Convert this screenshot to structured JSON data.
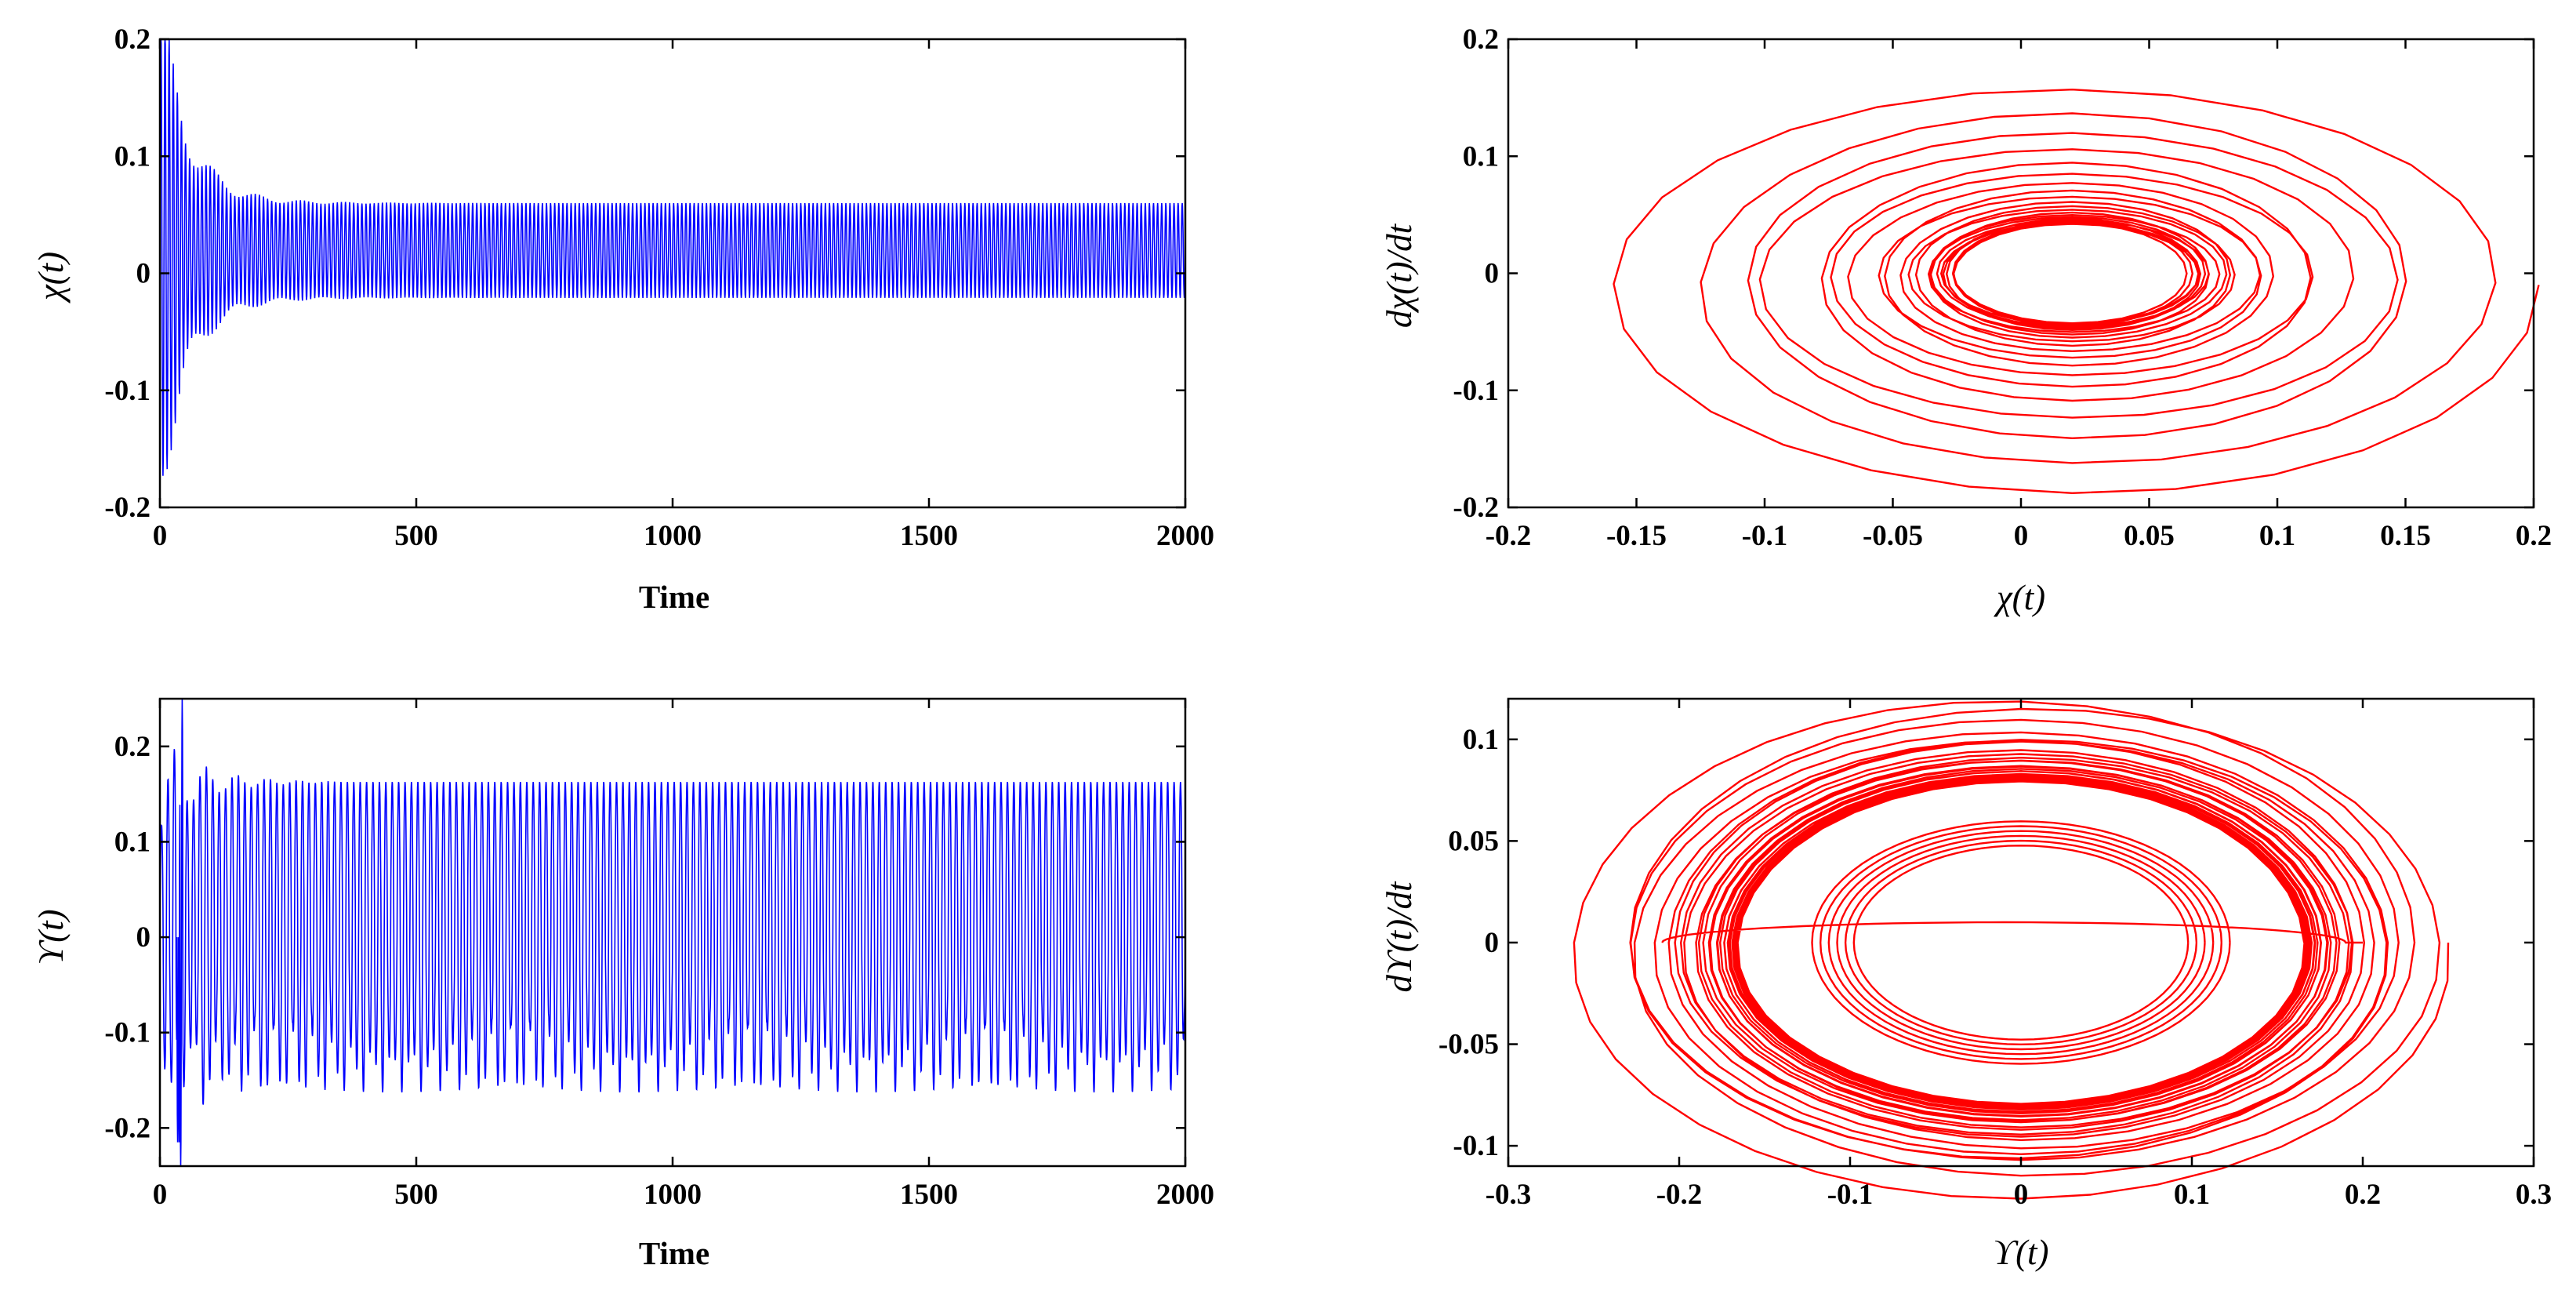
{
  "chart_data": [
    {
      "id": "p1",
      "type": "line",
      "title": "",
      "xlabel": "Time",
      "ylabel": "χ(t)",
      "xlim": [
        0,
        2000
      ],
      "ylim": [
        -0.2,
        0.2
      ],
      "xticks": [
        0,
        500,
        1000,
        1500,
        2000
      ],
      "xtick_labels": [
        "0",
        "500",
        "1000",
        "1500",
        "2000"
      ],
      "yticks": [
        -0.2,
        -0.1,
        0,
        0.1,
        0.2
      ],
      "ytick_labels": [
        "-0.2",
        "-0.1",
        "0",
        "0.1",
        "0.2"
      ],
      "color": "#0000ff",
      "series": [
        {
          "name": "χ(t)",
          "description": "oscillation decaying to steady band",
          "initial_max": 0.195,
          "initial_min": -0.17,
          "steady_max": 0.06,
          "steady_min": -0.021,
          "settle_time": 300,
          "period": 8
        }
      ]
    },
    {
      "id": "p2",
      "type": "line",
      "title": "",
      "xlabel": "χ(t)",
      "ylabel": "dχ(t)/dt",
      "xlim": [
        -0.2,
        0.2
      ],
      "ylim": [
        -0.2,
        0.2
      ],
      "xticks": [
        -0.2,
        -0.15,
        -0.1,
        -0.05,
        0,
        0.05,
        0.1,
        0.15,
        0.2
      ],
      "xtick_labels": [
        "-0.2",
        "-0.15",
        "-0.1",
        "-0.05",
        "0",
        "0.05",
        "0.1",
        "0.15",
        "0.2"
      ],
      "yticks": [
        -0.2,
        -0.1,
        0,
        0.1,
        0.2
      ],
      "ytick_labels": [
        "-0.2",
        "-0.1",
        "0",
        "0.1",
        "0.2"
      ],
      "color": "#ff0000",
      "series": [
        {
          "name": "phase portrait",
          "description": "inward spiral to limit cycle",
          "center": [
            0.02,
            0.0
          ],
          "start_radius": [
            0.19,
            0.19
          ],
          "limit_radius": [
            0.045,
            0.04
          ]
        }
      ]
    },
    {
      "id": "p3",
      "type": "line",
      "title": "",
      "xlabel": "Time",
      "ylabel": "ϒ(t)",
      "xlim": [
        0,
        2000
      ],
      "ylim": [
        -0.24,
        0.25
      ],
      "xticks": [
        0,
        500,
        1000,
        1500,
        2000
      ],
      "xtick_labels": [
        "0",
        "500",
        "1000",
        "1500",
        "2000"
      ],
      "yticks": [
        -0.2,
        -0.1,
        0,
        0.1,
        0.2
      ],
      "ytick_labels": [
        "-0.2",
        "-0.1",
        "0",
        "0.1",
        "0.2"
      ],
      "color": "#0000ff",
      "series": [
        {
          "name": "ϒ(t)",
          "description": "oscillation settling to steady amplitude",
          "steady_max": 0.163,
          "steady_min": -0.163,
          "initial_peak": 0.25,
          "initial_trough": -0.215,
          "period": 12.5
        }
      ]
    },
    {
      "id": "p4",
      "type": "line",
      "title": "",
      "xlabel": "ϒ(t)",
      "ylabel": "dϒ(t)/dt",
      "xlim": [
        -0.3,
        0.3
      ],
      "ylim": [
        -0.11,
        0.12
      ],
      "xticks": [
        -0.3,
        -0.2,
        -0.1,
        0,
        0.1,
        0.2,
        0.3
      ],
      "xtick_labels": [
        "-0.3",
        "-0.2",
        "-0.1",
        "0",
        "0.1",
        "0.2",
        "0.3"
      ],
      "yticks": [
        -0.1,
        -0.05,
        0,
        0.05,
        0.1
      ],
      "ytick_labels": [
        "-0.1",
        "-0.05",
        "0",
        "0.05",
        "0.1"
      ],
      "color": "#ff0000",
      "series": [
        {
          "name": "phase portrait",
          "description": "orbits converging to limit cycle",
          "limit_cycle": [
            0.163,
            0.078
          ],
          "outer_orbit": [
            0.25,
            0.12
          ],
          "start_point": [
            0.2,
            0.0
          ]
        }
      ]
    }
  ]
}
